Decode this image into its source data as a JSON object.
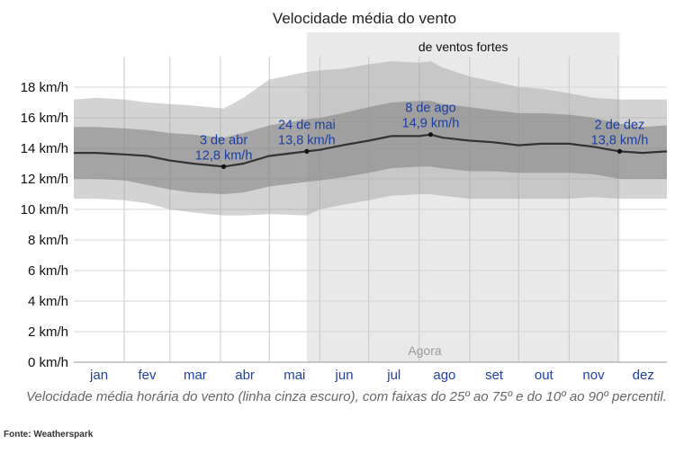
{
  "chart_data": {
    "type": "area",
    "title": "Velocidade média do vento",
    "unit": "km/h",
    "ylim": [
      0,
      20
    ],
    "yticks": [
      0,
      2,
      4,
      6,
      8,
      10,
      12,
      14,
      16,
      18
    ],
    "ytick_labels": [
      "0 km/h",
      "2 km/h",
      "4 km/h",
      "6 km/h",
      "8 km/h",
      "10 km/h",
      "12 km/h",
      "14 km/h",
      "16 km/h",
      "18 km/h"
    ],
    "months": [
      "jan",
      "fev",
      "mar",
      "abr",
      "mai",
      "jun",
      "jul",
      "ago",
      "set",
      "out",
      "nov",
      "dez"
    ],
    "grid": true,
    "x_day_of_year": [
      1,
      15,
      32,
      46,
      60,
      74,
      93,
      105,
      121,
      144,
      152,
      166,
      182,
      196,
      213,
      220,
      227,
      244,
      258,
      274,
      288,
      305,
      320,
      336,
      350,
      365
    ],
    "series": [
      {
        "values": [
          13.7,
          13.7,
          13.6,
          13.5,
          13.2,
          13.0,
          12.8,
          13.0,
          13.5,
          13.8,
          13.9,
          14.2,
          14.5,
          14.8,
          14.8,
          14.9,
          14.7,
          14.5,
          14.4,
          14.2,
          14.3,
          14.3,
          14.1,
          13.8,
          13.7,
          13.8
        ]
      },
      {
        "values": [
          12.0,
          12.0,
          11.9,
          11.6,
          11.3,
          11.1,
          11.0,
          11.1,
          11.5,
          11.8,
          11.9,
          12.1,
          12.4,
          12.7,
          12.8,
          12.8,
          12.7,
          12.5,
          12.5,
          12.4,
          12.4,
          12.4,
          12.3,
          12.0,
          12.0,
          12.0
        ]
      },
      {
        "values": [
          15.4,
          15.4,
          15.3,
          15.2,
          15.0,
          14.9,
          14.7,
          15.0,
          15.5,
          15.9,
          16.0,
          16.3,
          16.7,
          17.0,
          17.1,
          17.1,
          16.9,
          16.7,
          16.5,
          16.3,
          16.3,
          16.2,
          16.0,
          15.6,
          15.4,
          15.5
        ]
      },
      {
        "values": [
          10.7,
          10.7,
          10.6,
          10.4,
          10.0,
          9.8,
          9.6,
          9.6,
          9.7,
          9.6,
          10.0,
          10.3,
          10.6,
          10.9,
          11.0,
          11.0,
          10.9,
          10.7,
          10.7,
          10.7,
          10.7,
          10.7,
          10.8,
          10.7,
          10.7,
          10.7
        ]
      },
      {
        "values": [
          17.2,
          17.3,
          17.2,
          17.0,
          16.9,
          16.8,
          16.6,
          17.3,
          18.5,
          19.0,
          19.1,
          19.2,
          19.5,
          19.7,
          19.6,
          19.7,
          19.3,
          18.7,
          18.4,
          18.0,
          17.9,
          17.6,
          17.3,
          17.2,
          17.2,
          17.2
        ]
      }
    ],
    "annotations": [
      {
        "day": 93,
        "value": 12.8,
        "date": "3 de abr",
        "label": "12,8 km/h"
      },
      {
        "day": 144,
        "value": 13.8,
        "date": "24 de mai",
        "label": "13,8 km/h"
      },
      {
        "day": 220,
        "value": 14.9,
        "date": "8 de ago",
        "label": "14,9 km/h"
      },
      {
        "day": 336,
        "value": 13.8,
        "date": "2 de dez",
        "label": "13,8 km/h"
      }
    ],
    "highlight": {
      "start_day": 144,
      "end_day": 336,
      "label": "de ventos fortes"
    },
    "now_label": "Agora"
  },
  "caption": "Velocidade média horária do vento (linha cinza escuro), com faixas do 25º ao 75º e do 10º ao 90º percentil.",
  "source": "Fonte: Weatherspark"
}
